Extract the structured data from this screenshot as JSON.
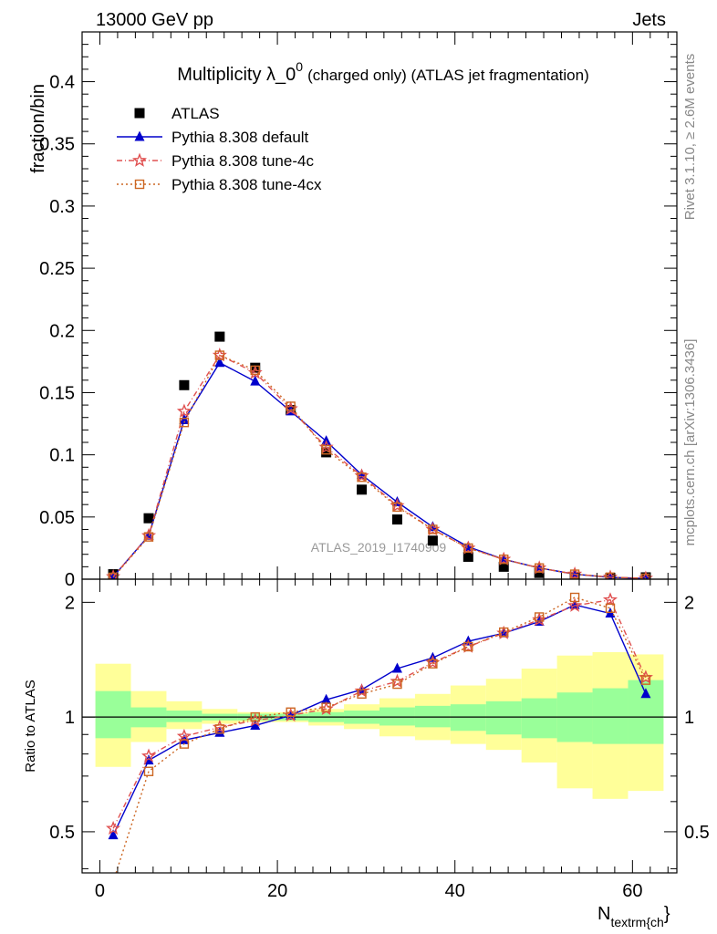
{
  "header": {
    "energy_label": "13000 GeV pp",
    "process_label": "Jets"
  },
  "side_labels": {
    "rivet": "Rivet 3.1.10, ≥ 2.6M events",
    "mcplots": "mcplots.cern.ch [arXiv:1306.3436]"
  },
  "watermark": "ATLAS_2019_I1740909",
  "chart_data": {
    "type": "scatter",
    "title_main": "Multiplicity λ_0",
    "title_sup": "0",
    "title_rest": "(charged only) (ATLAS jet fragmentation)",
    "ylabel": "fraction/bin",
    "ratio_ylabel": "Ratio to ATLAS",
    "xlabel_main": "N",
    "xlabel_sub": "textrm{ch",
    "xlabel_tail": "}",
    "xlim": [
      -2,
      65
    ],
    "ylim": [
      0,
      0.44
    ],
    "ratio_ylim": [
      0.39,
      2.3
    ],
    "ratio_scale": "log",
    "x_ticks": [
      0,
      20,
      40,
      60
    ],
    "y_ticks": [
      0,
      0.05,
      0.1,
      0.15,
      0.2,
      0.25,
      0.3,
      0.35,
      0.4
    ],
    "y_tick_labels": [
      "0",
      "0.05",
      "0.1",
      "0.15",
      "0.2",
      "0.25",
      "0.3",
      "0.35",
      "0.4"
    ],
    "ratio_ticks": [
      0.5,
      1,
      2
    ],
    "ratio_tick_labels": [
      "0.5",
      "1",
      "2"
    ],
    "x": [
      1.5,
      5.5,
      9.5,
      13.5,
      17.5,
      21.5,
      25.5,
      29.5,
      33.5,
      37.5,
      41.5,
      45.5,
      49.5,
      53.5,
      57.5,
      61.5
    ],
    "bin_edges": [
      -0.5,
      3.5,
      7.5,
      11.5,
      15.5,
      19.5,
      23.5,
      27.5,
      31.5,
      35.5,
      39.5,
      43.5,
      47.5,
      51.5,
      55.5,
      59.5,
      63.5
    ],
    "legend_position": "top-left",
    "series": [
      {
        "name": "ATLAS",
        "marker": "square",
        "color": "#000000",
        "values": [
          0.004,
          0.049,
          0.156,
          0.195,
          0.17,
          0.136,
          0.102,
          0.072,
          0.048,
          0.031,
          0.018,
          0.01,
          0.005,
          0.002,
          0.001,
          0.0015
        ]
      },
      {
        "name": "Pythia 8.308 default",
        "marker": "triangle",
        "color": "#0000cc",
        "dash": "",
        "values": [
          0.002,
          0.035,
          0.128,
          0.174,
          0.159,
          0.135,
          0.111,
          0.084,
          0.062,
          0.042,
          0.026,
          0.016,
          0.009,
          0.004,
          0.0015,
          0.0006
        ],
        "ratio": [
          0.49,
          0.77,
          0.87,
          0.91,
          0.95,
          1.01,
          1.11,
          1.18,
          1.34,
          1.43,
          1.58,
          1.66,
          1.78,
          1.97,
          1.87,
          1.15
        ]
      },
      {
        "name": "Pythia 8.308 tune-4c",
        "marker": "star",
        "color": "#e05050",
        "dash": "6,3,1,3",
        "values": [
          0.002,
          0.035,
          0.135,
          0.18,
          0.166,
          0.137,
          0.106,
          0.083,
          0.059,
          0.04,
          0.025,
          0.016,
          0.009,
          0.004,
          0.0016,
          0.0007
        ],
        "ratio": [
          0.51,
          0.79,
          0.89,
          0.94,
          0.98,
          1.01,
          1.05,
          1.17,
          1.24,
          1.39,
          1.53,
          1.66,
          1.8,
          1.96,
          2.03,
          1.27
        ]
      },
      {
        "name": "Pythia 8.308 tune-4cx",
        "marker": "open-square",
        "color": "#cc6622",
        "dash": "2,3",
        "values": [
          0.0015,
          0.034,
          0.126,
          0.18,
          0.168,
          0.139,
          0.104,
          0.082,
          0.058,
          0.04,
          0.025,
          0.016,
          0.009,
          0.004,
          0.0016,
          0.0007
        ],
        "ratio": [
          0.37,
          0.72,
          0.85,
          0.93,
          1.0,
          1.03,
          1.06,
          1.15,
          1.22,
          1.38,
          1.53,
          1.67,
          1.83,
          2.06,
          1.93,
          1.25
        ]
      }
    ],
    "uncertainty_bands": {
      "inner_color": "#99ff99",
      "outer_color": "#ffff99",
      "inner": [
        [
          0.88,
          1.17
        ],
        [
          0.94,
          1.06
        ],
        [
          0.97,
          1.04
        ],
        [
          0.98,
          1.02
        ],
        [
          0.98,
          1.02
        ],
        [
          0.98,
          1.02
        ],
        [
          0.97,
          1.03
        ],
        [
          0.96,
          1.04
        ],
        [
          0.95,
          1.06
        ],
        [
          0.94,
          1.07
        ],
        [
          0.92,
          1.08
        ],
        [
          0.9,
          1.1
        ],
        [
          0.88,
          1.12
        ],
        [
          0.86,
          1.16
        ],
        [
          0.85,
          1.19
        ],
        [
          0.85,
          1.25
        ]
      ],
      "outer": [
        [
          0.74,
          1.38
        ],
        [
          0.86,
          1.17
        ],
        [
          0.93,
          1.1
        ],
        [
          0.96,
          1.05
        ],
        [
          0.97,
          1.03
        ],
        [
          0.97,
          1.03
        ],
        [
          0.95,
          1.05
        ],
        [
          0.93,
          1.08
        ],
        [
          0.89,
          1.12
        ],
        [
          0.87,
          1.15
        ],
        [
          0.85,
          1.21
        ],
        [
          0.82,
          1.26
        ],
        [
          0.76,
          1.34
        ],
        [
          0.65,
          1.45
        ],
        [
          0.61,
          1.48
        ],
        [
          0.64,
          1.46
        ]
      ]
    }
  }
}
